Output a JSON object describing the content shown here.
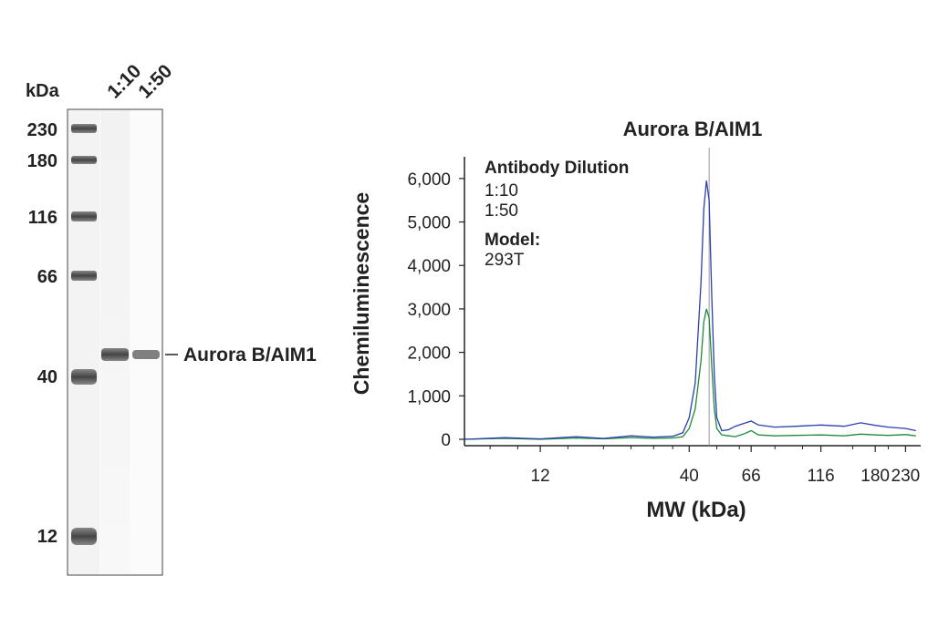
{
  "blot": {
    "unit_label": "kDa",
    "lane_labels": [
      "1:10",
      "1:50"
    ],
    "ladder": [
      "230",
      "180",
      "116",
      "66",
      "40",
      "12"
    ],
    "band_label": "Aurora B/AIM1"
  },
  "chart_data": {
    "type": "line",
    "title": "Aurora B/AIM1",
    "xlabel": "MW (kDa)",
    "ylabel": "Chemiluminescence",
    "x_scale": "log",
    "x_ticks": [
      "12",
      "40",
      "66",
      "116",
      "180",
      "230"
    ],
    "y_ticks": [
      "0",
      "1,000",
      "2,000",
      "3,000",
      "4,000",
      "5,000",
      "6,000"
    ],
    "ylim": [
      0,
      6500
    ],
    "reference_line_x": 47,
    "legend": {
      "title": "Antibody Dilution",
      "model_title": "Model:",
      "model_value": "293T",
      "placement": "top-left"
    },
    "series": [
      {
        "name": "1:10",
        "color": "#2b3fb0",
        "x": [
          6.5,
          9,
          12,
          16,
          20,
          25,
          30,
          35,
          38,
          40,
          42,
          44,
          45,
          46,
          47,
          48,
          49,
          50,
          52,
          55,
          58,
          62,
          66,
          70,
          80,
          95,
          116,
          140,
          160,
          180,
          200,
          230,
          250
        ],
        "y": [
          0,
          40,
          10,
          60,
          20,
          80,
          50,
          70,
          150,
          500,
          1300,
          3600,
          5300,
          5950,
          5500,
          3300,
          1500,
          500,
          200,
          220,
          300,
          360,
          420,
          330,
          280,
          300,
          330,
          300,
          380,
          320,
          280,
          250,
          200
        ]
      },
      {
        "name": "1:50",
        "color": "#1d8a3a",
        "x": [
          6.5,
          9,
          12,
          16,
          20,
          25,
          30,
          35,
          38,
          40,
          42,
          44,
          45,
          46,
          47,
          48,
          49,
          50,
          52,
          55,
          58,
          62,
          66,
          70,
          80,
          95,
          116,
          140,
          160,
          180,
          200,
          230,
          250
        ],
        "y": [
          0,
          20,
          0,
          30,
          10,
          40,
          20,
          30,
          60,
          250,
          700,
          1800,
          2700,
          3000,
          2800,
          1700,
          700,
          250,
          100,
          80,
          60,
          120,
          200,
          100,
          80,
          90,
          100,
          80,
          120,
          100,
          90,
          110,
          80
        ]
      }
    ]
  }
}
